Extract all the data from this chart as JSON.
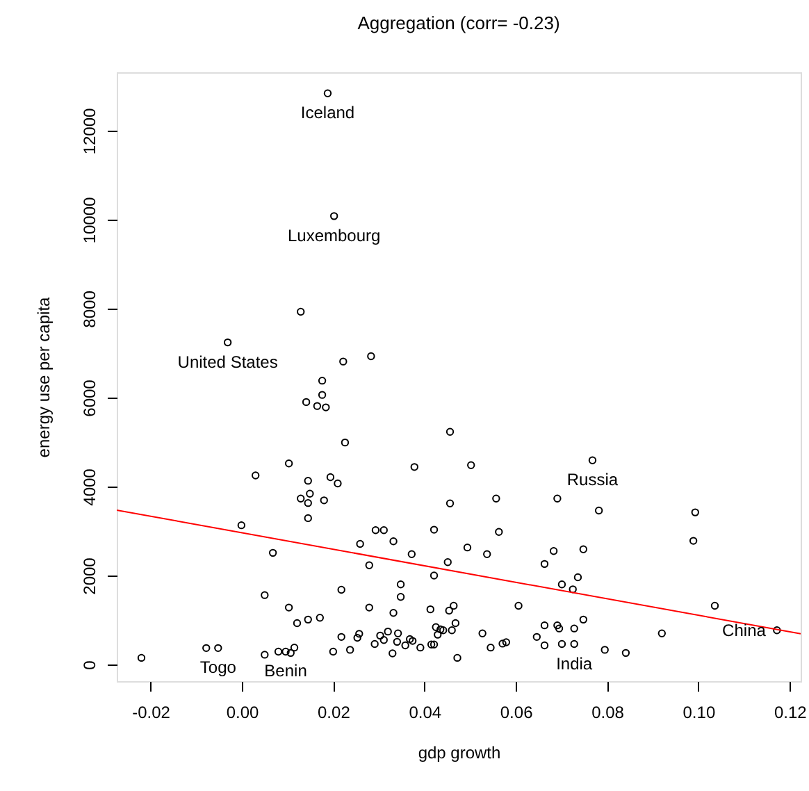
{
  "chart_data": {
    "type": "scatter",
    "title": "Aggregation (corr= -0.23)",
    "xlabel": "gdp growth",
    "ylabel": "energy use per capita",
    "xlim": [
      -0.0274,
      0.1224
    ],
    "ylim": [
      -375,
      13312
    ],
    "xticks": [
      {
        "value": -0.02,
        "label": "-0.02"
      },
      {
        "value": 0,
        "label": "0.00"
      },
      {
        "value": 0.02,
        "label": "0.02"
      },
      {
        "value": 0.04,
        "label": "0.04"
      },
      {
        "value": 0.06,
        "label": "0.06"
      },
      {
        "value": 0.08,
        "label": "0.08"
      },
      {
        "value": 0.1,
        "label": "0.10"
      },
      {
        "value": 0.12,
        "label": "0.12"
      }
    ],
    "yticks": [
      0,
      2000,
      4000,
      6000,
      8000,
      10000,
      12000
    ],
    "grid": false,
    "series": [
      {
        "color": "#000000",
        "marker": "circle",
        "x": [
          0.0188,
          0.0202,
          0.0129,
          -0.0031,
          0.0222,
          0.0283,
          0.0176,
          0.0176,
          0.0141,
          0.0165,
          0.0184,
          0.0226,
          0.0103,
          0.003,
          0.0145,
          0.0194,
          0.021,
          0.0378,
          0.0129,
          0.0149,
          0.0145,
          0.018,
          0.0145,
          -0.0001,
          0.0068,
          0.0259,
          0.0293,
          0.0311,
          0.0332,
          0.0372,
          0.0279,
          0.0421,
          0.0421,
          0.0348,
          0.0348,
          0.0218,
          0.005,
          0.0103,
          0.0279,
          0.0332,
          0.0413,
          0.0425,
          0.0121,
          0.0145,
          0.0171,
          -0.022,
          -0.0078,
          -0.0052,
          0.005,
          0.008,
          0.0096,
          0.0107,
          0.0115,
          0.02,
          0.0218,
          0.0237,
          0.0253,
          0.0257,
          0.0291,
          0.0303,
          0.0311,
          0.032,
          0.033,
          0.0342,
          0.034,
          0.0358,
          0.0368,
          0.0374,
          0.0391,
          0.0415,
          0.0421,
          0.0429,
          0.0435,
          0.0456,
          0.0502,
          0.0768,
          0.0456,
          0.0557,
          0.0691,
          0.0782,
          0.0993,
          0.0989,
          0.0563,
          0.0494,
          0.0537,
          0.0451,
          0.0683,
          0.0748,
          0.0663,
          0.0736,
          0.0701,
          0.0725,
          0.1036,
          0.0606,
          0.0464,
          0.0454,
          0.1172,
          0.092,
          0.0748,
          0.0728,
          0.0691,
          0.0695,
          0.0663,
          0.0646,
          0.0663,
          0.0701,
          0.0728,
          0.0795,
          0.0841,
          0.0527,
          0.0545,
          0.0571,
          0.0579,
          0.0472,
          0.0468,
          0.046,
          0.0441
        ],
        "values": [
          12840,
          10080,
          7930,
          7240,
          6810,
          6930,
          6380,
          6060,
          5900,
          5810,
          5780,
          4990,
          4520,
          4250,
          4130,
          4210,
          4070,
          4440,
          3730,
          3840,
          3630,
          3690,
          3290,
          3130,
          2510,
          2710,
          3020,
          3020,
          2770,
          2480,
          2230,
          3030,
          2000,
          1800,
          1520,
          1680,
          1560,
          1280,
          1280,
          1160,
          1240,
          840,
          930,
          1010,
          1050,
          150,
          370,
          370,
          220,
          290,
          290,
          260,
          380,
          290,
          620,
          330,
          600,
          690,
          460,
          650,
          550,
          740,
          250,
          700,
          510,
          430,
          570,
          530,
          380,
          450,
          450,
          670,
          790,
          5230,
          4480,
          4590,
          3620,
          3730,
          3730,
          3460,
          3420,
          2780,
          2980,
          2630,
          2480,
          2300,
          2550,
          2590,
          2260,
          1960,
          1800,
          1690,
          1320,
          1320,
          1320,
          1210,
          770,
          700,
          1010,
          810,
          880,
          810,
          880,
          620,
          430,
          460,
          460,
          330,
          260,
          700,
          380,
          470,
          500,
          150,
          930,
          770,
          770
        ]
      },
      {
        "type": "line",
        "color": "#ff0000",
        "x": [
          -0.0274,
          0.1224
        ],
        "values": [
          3470,
          690
        ]
      }
    ],
    "annotations": [
      {
        "text": "Iceland",
        "x": 0.0188,
        "y": 12840
      },
      {
        "text": "Luxembourg",
        "x": 0.0202,
        "y": 10080
      },
      {
        "text": "United States",
        "x": -0.0031,
        "y": 7240
      },
      {
        "text": "Russia",
        "x": 0.0768,
        "y": 4590
      },
      {
        "text": "China",
        "x": 0.1172,
        "y": 770
      },
      {
        "text": "India",
        "x": 0.0728,
        "y": 460
      },
      {
        "text": "Togo",
        "x": -0.0052,
        "y": 370
      },
      {
        "text": "Benin",
        "x": 0.0096,
        "y": 290
      }
    ]
  }
}
